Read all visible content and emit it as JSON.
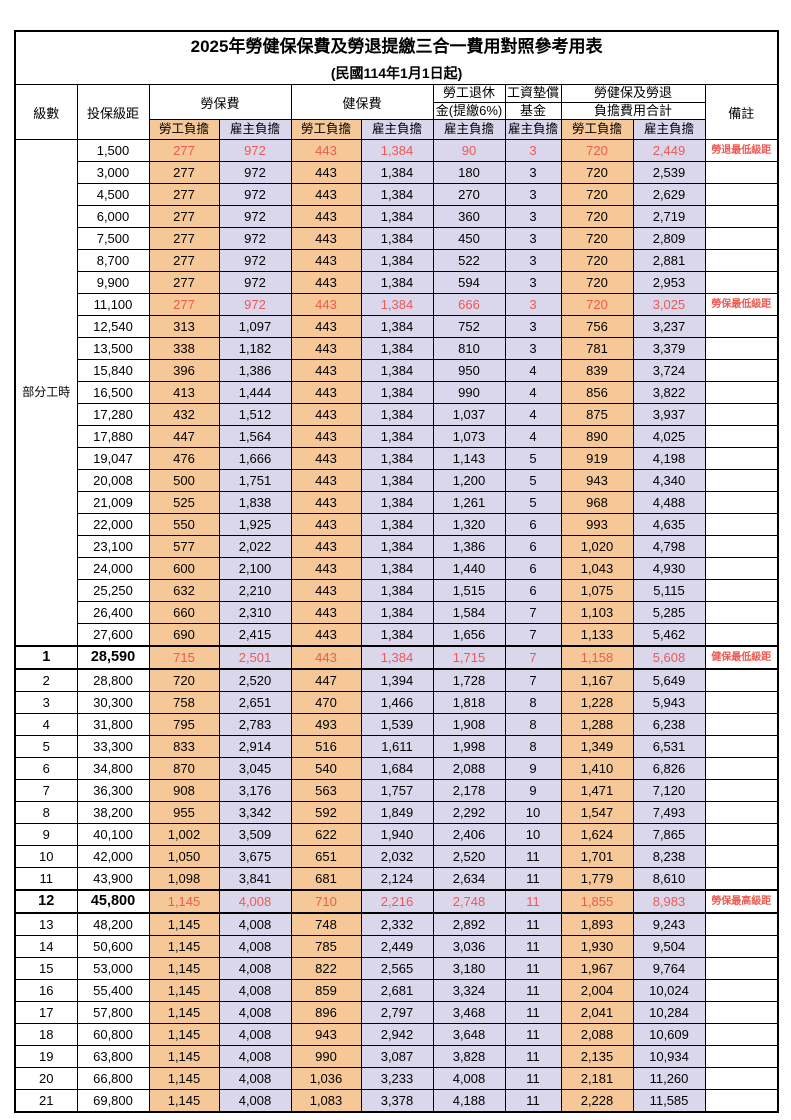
{
  "title": "2025年勞健保保費及勞退提繳三合一費用對照參考用表",
  "subtitle": "(民國114年1月1日起)",
  "colors": {
    "employee_column_bg": "#F7C897",
    "employer_column_bg": "#DAD6EC",
    "highlight_text": "#ED5A52",
    "border": "#000000",
    "page_bg": "#FFFFFF"
  },
  "header": {
    "level": "級數",
    "bracket": "投保級距",
    "labor_insurance": "勞保費",
    "health_insurance": "健保費",
    "pension_line1": "勞工退休",
    "pension_line2": "金(提繳6%)",
    "wage_fund_line1": "工資墊償",
    "wage_fund_line2": "基金",
    "total_line1": "勞健保及勞退",
    "total_line2": "負擔費用合計",
    "remark": "備註",
    "employee": "勞工負擔",
    "employer": "雇主負擔"
  },
  "part_time_label": "部分工時",
  "part_time_rowspan": 23,
  "value_column_styles": [
    "emp",
    "er",
    "emp",
    "er",
    "er",
    "er",
    "emp",
    "er"
  ],
  "rows": [
    {
      "level": "",
      "bracket": "1,500",
      "v": [
        "277",
        "972",
        "443",
        "1,384",
        "90",
        "3",
        "720",
        "2,449"
      ],
      "remark": "勞退最低級距",
      "red": true,
      "bold": false
    },
    {
      "level": "",
      "bracket": "3,000",
      "v": [
        "277",
        "972",
        "443",
        "1,384",
        "180",
        "3",
        "720",
        "2,539"
      ],
      "remark": "",
      "red": false,
      "bold": false
    },
    {
      "level": "",
      "bracket": "4,500",
      "v": [
        "277",
        "972",
        "443",
        "1,384",
        "270",
        "3",
        "720",
        "2,629"
      ],
      "remark": "",
      "red": false,
      "bold": false
    },
    {
      "level": "",
      "bracket": "6,000",
      "v": [
        "277",
        "972",
        "443",
        "1,384",
        "360",
        "3",
        "720",
        "2,719"
      ],
      "remark": "",
      "red": false,
      "bold": false
    },
    {
      "level": "",
      "bracket": "7,500",
      "v": [
        "277",
        "972",
        "443",
        "1,384",
        "450",
        "3",
        "720",
        "2,809"
      ],
      "remark": "",
      "red": false,
      "bold": false
    },
    {
      "level": "",
      "bracket": "8,700",
      "v": [
        "277",
        "972",
        "443",
        "1,384",
        "522",
        "3",
        "720",
        "2,881"
      ],
      "remark": "",
      "red": false,
      "bold": false
    },
    {
      "level": "",
      "bracket": "9,900",
      "v": [
        "277",
        "972",
        "443",
        "1,384",
        "594",
        "3",
        "720",
        "2,953"
      ],
      "remark": "",
      "red": false,
      "bold": false
    },
    {
      "level": "",
      "bracket": "11,100",
      "v": [
        "277",
        "972",
        "443",
        "1,384",
        "666",
        "3",
        "720",
        "3,025"
      ],
      "remark": "勞保最低級距",
      "red": true,
      "bold": false
    },
    {
      "level": "",
      "bracket": "12,540",
      "v": [
        "313",
        "1,097",
        "443",
        "1,384",
        "752",
        "3",
        "756",
        "3,237"
      ],
      "remark": "",
      "red": false,
      "bold": false
    },
    {
      "level": "",
      "bracket": "13,500",
      "v": [
        "338",
        "1,182",
        "443",
        "1,384",
        "810",
        "3",
        "781",
        "3,379"
      ],
      "remark": "",
      "red": false,
      "bold": false
    },
    {
      "level": "",
      "bracket": "15,840",
      "v": [
        "396",
        "1,386",
        "443",
        "1,384",
        "950",
        "4",
        "839",
        "3,724"
      ],
      "remark": "",
      "red": false,
      "bold": false
    },
    {
      "level": "",
      "bracket": "16,500",
      "v": [
        "413",
        "1,444",
        "443",
        "1,384",
        "990",
        "4",
        "856",
        "3,822"
      ],
      "remark": "",
      "red": false,
      "bold": false
    },
    {
      "level": "",
      "bracket": "17,280",
      "v": [
        "432",
        "1,512",
        "443",
        "1,384",
        "1,037",
        "4",
        "875",
        "3,937"
      ],
      "remark": "",
      "red": false,
      "bold": false
    },
    {
      "level": "",
      "bracket": "17,880",
      "v": [
        "447",
        "1,564",
        "443",
        "1,384",
        "1,073",
        "4",
        "890",
        "4,025"
      ],
      "remark": "",
      "red": false,
      "bold": false
    },
    {
      "level": "",
      "bracket": "19,047",
      "v": [
        "476",
        "1,666",
        "443",
        "1,384",
        "1,143",
        "5",
        "919",
        "4,198"
      ],
      "remark": "",
      "red": false,
      "bold": false
    },
    {
      "level": "",
      "bracket": "20,008",
      "v": [
        "500",
        "1,751",
        "443",
        "1,384",
        "1,200",
        "5",
        "943",
        "4,340"
      ],
      "remark": "",
      "red": false,
      "bold": false
    },
    {
      "level": "",
      "bracket": "21,009",
      "v": [
        "525",
        "1,838",
        "443",
        "1,384",
        "1,261",
        "5",
        "968",
        "4,488"
      ],
      "remark": "",
      "red": false,
      "bold": false
    },
    {
      "level": "",
      "bracket": "22,000",
      "v": [
        "550",
        "1,925",
        "443",
        "1,384",
        "1,320",
        "6",
        "993",
        "4,635"
      ],
      "remark": "",
      "red": false,
      "bold": false
    },
    {
      "level": "",
      "bracket": "23,100",
      "v": [
        "577",
        "2,022",
        "443",
        "1,384",
        "1,386",
        "6",
        "1,020",
        "4,798"
      ],
      "remark": "",
      "red": false,
      "bold": false
    },
    {
      "level": "",
      "bracket": "24,000",
      "v": [
        "600",
        "2,100",
        "443",
        "1,384",
        "1,440",
        "6",
        "1,043",
        "4,930"
      ],
      "remark": "",
      "red": false,
      "bold": false
    },
    {
      "level": "",
      "bracket": "25,250",
      "v": [
        "632",
        "2,210",
        "443",
        "1,384",
        "1,515",
        "6",
        "1,075",
        "5,115"
      ],
      "remark": "",
      "red": false,
      "bold": false
    },
    {
      "level": "",
      "bracket": "26,400",
      "v": [
        "660",
        "2,310",
        "443",
        "1,384",
        "1,584",
        "7",
        "1,103",
        "5,285"
      ],
      "remark": "",
      "red": false,
      "bold": false
    },
    {
      "level": "",
      "bracket": "27,600",
      "v": [
        "690",
        "2,415",
        "443",
        "1,384",
        "1,656",
        "7",
        "1,133",
        "5,462"
      ],
      "remark": "",
      "red": false,
      "bold": false
    },
    {
      "level": "1",
      "bracket": "28,590",
      "v": [
        "715",
        "2,501",
        "443",
        "1,384",
        "1,715",
        "7",
        "1,158",
        "5,608"
      ],
      "remark": "健保最低級距",
      "red": true,
      "bold": true
    },
    {
      "level": "2",
      "bracket": "28,800",
      "v": [
        "720",
        "2,520",
        "447",
        "1,394",
        "1,728",
        "7",
        "1,167",
        "5,649"
      ],
      "remark": "",
      "red": false,
      "bold": false
    },
    {
      "level": "3",
      "bracket": "30,300",
      "v": [
        "758",
        "2,651",
        "470",
        "1,466",
        "1,818",
        "8",
        "1,228",
        "5,943"
      ],
      "remark": "",
      "red": false,
      "bold": false
    },
    {
      "level": "4",
      "bracket": "31,800",
      "v": [
        "795",
        "2,783",
        "493",
        "1,539",
        "1,908",
        "8",
        "1,288",
        "6,238"
      ],
      "remark": "",
      "red": false,
      "bold": false
    },
    {
      "level": "5",
      "bracket": "33,300",
      "v": [
        "833",
        "2,914",
        "516",
        "1,611",
        "1,998",
        "8",
        "1,349",
        "6,531"
      ],
      "remark": "",
      "red": false,
      "bold": false
    },
    {
      "level": "6",
      "bracket": "34,800",
      "v": [
        "870",
        "3,045",
        "540",
        "1,684",
        "2,088",
        "9",
        "1,410",
        "6,826"
      ],
      "remark": "",
      "red": false,
      "bold": false
    },
    {
      "level": "7",
      "bracket": "36,300",
      "v": [
        "908",
        "3,176",
        "563",
        "1,757",
        "2,178",
        "9",
        "1,471",
        "7,120"
      ],
      "remark": "",
      "red": false,
      "bold": false
    },
    {
      "level": "8",
      "bracket": "38,200",
      "v": [
        "955",
        "3,342",
        "592",
        "1,849",
        "2,292",
        "10",
        "1,547",
        "7,493"
      ],
      "remark": "",
      "red": false,
      "bold": false
    },
    {
      "level": "9",
      "bracket": "40,100",
      "v": [
        "1,002",
        "3,509",
        "622",
        "1,940",
        "2,406",
        "10",
        "1,624",
        "7,865"
      ],
      "remark": "",
      "red": false,
      "bold": false
    },
    {
      "level": "10",
      "bracket": "42,000",
      "v": [
        "1,050",
        "3,675",
        "651",
        "2,032",
        "2,520",
        "11",
        "1,701",
        "8,238"
      ],
      "remark": "",
      "red": false,
      "bold": false
    },
    {
      "level": "11",
      "bracket": "43,900",
      "v": [
        "1,098",
        "3,841",
        "681",
        "2,124",
        "2,634",
        "11",
        "1,779",
        "8,610"
      ],
      "remark": "",
      "red": false,
      "bold": false
    },
    {
      "level": "12",
      "bracket": "45,800",
      "v": [
        "1,145",
        "4,008",
        "710",
        "2,216",
        "2,748",
        "11",
        "1,855",
        "8,983"
      ],
      "remark": "勞保最高級距",
      "red": true,
      "bold": true
    },
    {
      "level": "13",
      "bracket": "48,200",
      "v": [
        "1,145",
        "4,008",
        "748",
        "2,332",
        "2,892",
        "11",
        "1,893",
        "9,243"
      ],
      "remark": "",
      "red": false,
      "bold": false
    },
    {
      "level": "14",
      "bracket": "50,600",
      "v": [
        "1,145",
        "4,008",
        "785",
        "2,449",
        "3,036",
        "11",
        "1,930",
        "9,504"
      ],
      "remark": "",
      "red": false,
      "bold": false
    },
    {
      "level": "15",
      "bracket": "53,000",
      "v": [
        "1,145",
        "4,008",
        "822",
        "2,565",
        "3,180",
        "11",
        "1,967",
        "9,764"
      ],
      "remark": "",
      "red": false,
      "bold": false
    },
    {
      "level": "16",
      "bracket": "55,400",
      "v": [
        "1,145",
        "4,008",
        "859",
        "2,681",
        "3,324",
        "11",
        "2,004",
        "10,024"
      ],
      "remark": "",
      "red": false,
      "bold": false
    },
    {
      "level": "17",
      "bracket": "57,800",
      "v": [
        "1,145",
        "4,008",
        "896",
        "2,797",
        "3,468",
        "11",
        "2,041",
        "10,284"
      ],
      "remark": "",
      "red": false,
      "bold": false
    },
    {
      "level": "18",
      "bracket": "60,800",
      "v": [
        "1,145",
        "4,008",
        "943",
        "2,942",
        "3,648",
        "11",
        "2,088",
        "10,609"
      ],
      "remark": "",
      "red": false,
      "bold": false
    },
    {
      "level": "19",
      "bracket": "63,800",
      "v": [
        "1,145",
        "4,008",
        "990",
        "3,087",
        "3,828",
        "11",
        "2,135",
        "10,934"
      ],
      "remark": "",
      "red": false,
      "bold": false
    },
    {
      "level": "20",
      "bracket": "66,800",
      "v": [
        "1,145",
        "4,008",
        "1,036",
        "3,233",
        "4,008",
        "11",
        "2,181",
        "11,260"
      ],
      "remark": "",
      "red": false,
      "bold": false
    },
    {
      "level": "21",
      "bracket": "69,800",
      "v": [
        "1,145",
        "4,008",
        "1,083",
        "3,378",
        "4,188",
        "11",
        "2,228",
        "11,585"
      ],
      "remark": "",
      "red": false,
      "bold": false
    }
  ]
}
